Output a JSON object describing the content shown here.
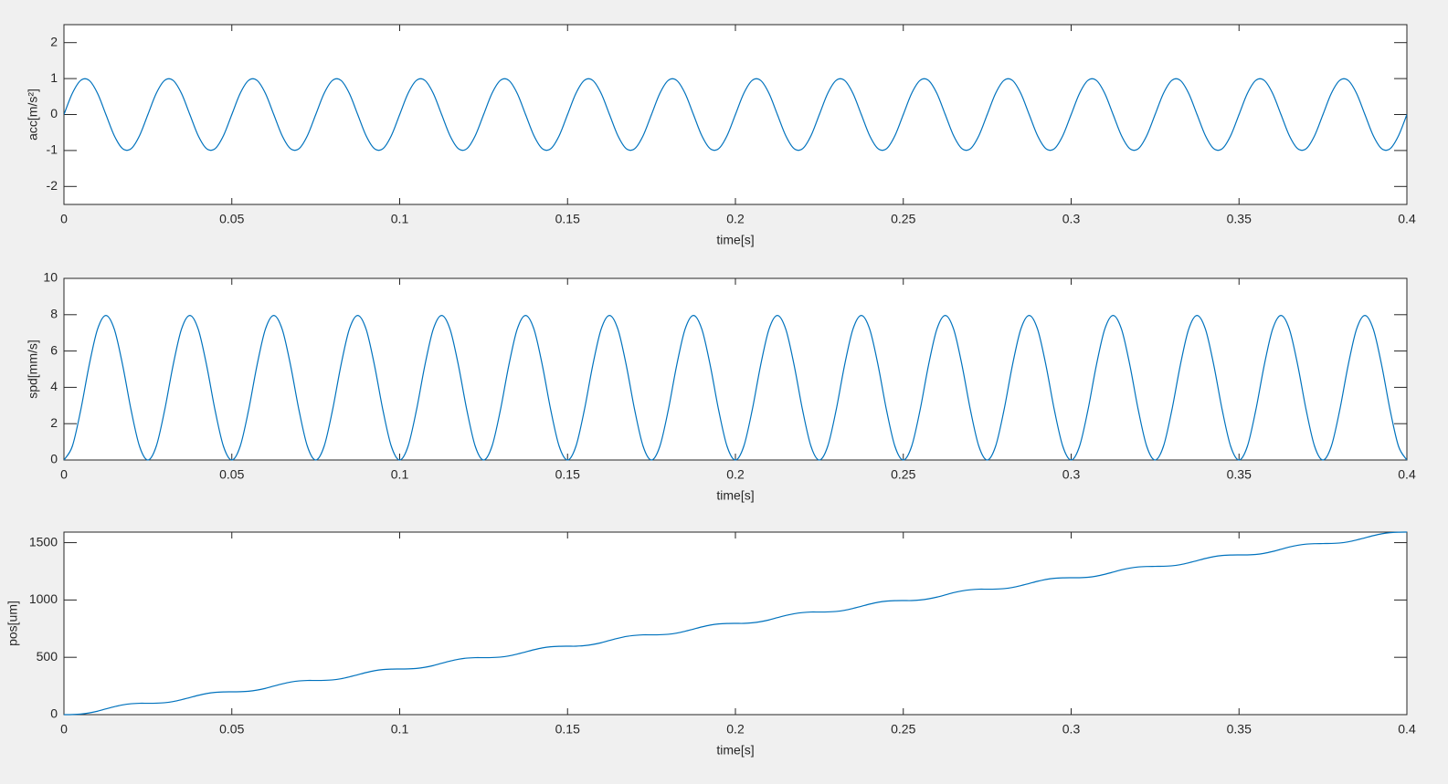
{
  "chart_data": [
    {
      "type": "line",
      "xlabel": "time[s]",
      "ylabel": "acc[m/s²]",
      "xlim": [
        0,
        0.4
      ],
      "ylim": [
        -2.5,
        2.5
      ],
      "xticks": [
        0,
        0.05,
        0.1,
        0.15,
        0.2,
        0.25,
        0.3,
        0.35,
        0.4
      ],
      "yticks": [
        -2,
        -1,
        0,
        1,
        2
      ],
      "grid": false,
      "x": [
        0,
        0.0025,
        0.005,
        0.0075,
        0.01,
        0.0125,
        0.015,
        0.0175,
        0.02,
        0.0225,
        0.025,
        0.0275,
        0.03,
        0.0325,
        0.035,
        0.0375,
        0.04,
        0.0425,
        0.045,
        0.0475,
        0.05,
        0.0525,
        0.055,
        0.0575,
        0.06,
        0.0625,
        0.065,
        0.0675,
        0.07,
        0.0725,
        0.075,
        0.0775,
        0.08,
        0.0825,
        0.085,
        0.0875,
        0.09,
        0.0925,
        0.095,
        0.0975,
        0.1,
        0.1025,
        0.105,
        0.1075,
        0.11,
        0.1125,
        0.115,
        0.1175,
        0.12,
        0.1225,
        0.125,
        0.1275,
        0.13,
        0.1325,
        0.135,
        0.1375,
        0.14,
        0.1425,
        0.145,
        0.1475,
        0.15,
        0.1525,
        0.155,
        0.1575,
        0.16,
        0.1625,
        0.165,
        0.1675,
        0.17,
        0.1725,
        0.175,
        0.1775,
        0.18,
        0.1825,
        0.185,
        0.1875,
        0.19,
        0.1925,
        0.195,
        0.1975,
        0.2,
        0.2025,
        0.205,
        0.2075,
        0.21,
        0.2125,
        0.215,
        0.2175,
        0.22,
        0.2225,
        0.225,
        0.2275,
        0.23,
        0.2325,
        0.235,
        0.2375,
        0.24,
        0.2425,
        0.245,
        0.2475,
        0.25,
        0.2525,
        0.255,
        0.2575,
        0.26,
        0.2625,
        0.265,
        0.2675,
        0.27,
        0.2725,
        0.275,
        0.2775,
        0.28,
        0.2825,
        0.285,
        0.2875,
        0.29,
        0.2925,
        0.295,
        0.2975,
        0.3,
        0.3025,
        0.305,
        0.3075,
        0.31,
        0.3125,
        0.315,
        0.3175,
        0.32,
        0.3225,
        0.325,
        0.3275,
        0.33,
        0.3325,
        0.335,
        0.3375,
        0.34,
        0.3425,
        0.345,
        0.3475,
        0.35,
        0.3525,
        0.355,
        0.3575,
        0.36,
        0.3625,
        0.365,
        0.3675,
        0.37,
        0.3725,
        0.375,
        0.3775,
        0.38,
        0.3825,
        0.385,
        0.3875,
        0.39,
        0.3925,
        0.395,
        0.3975,
        0.4
      ],
      "series": [
        {
          "color": "#0072bd",
          "values": [
            0,
            0.59,
            0.95,
            0.95,
            0.59,
            0,
            -0.59,
            -0.95,
            -0.95,
            -0.59,
            0,
            0.59,
            0.95,
            0.95,
            0.59,
            0,
            -0.59,
            -0.95,
            -0.95,
            -0.59,
            0,
            0.59,
            0.95,
            0.95,
            0.59,
            0,
            -0.59,
            -0.95,
            -0.95,
            -0.59,
            0,
            0.59,
            0.95,
            0.95,
            0.59,
            0,
            -0.59,
            -0.95,
            -0.95,
            -0.59,
            0,
            0.59,
            0.95,
            0.95,
            0.59,
            0,
            -0.59,
            -0.95,
            -0.95,
            -0.59,
            0,
            0.59,
            0.95,
            0.95,
            0.59,
            0,
            -0.59,
            -0.95,
            -0.95,
            -0.59,
            0,
            0.59,
            0.95,
            0.95,
            0.59,
            0,
            -0.59,
            -0.95,
            -0.95,
            -0.59,
            0,
            0.59,
            0.95,
            0.95,
            0.59,
            0,
            -0.59,
            -0.95,
            -0.95,
            -0.59,
            0,
            0.59,
            0.95,
            0.95,
            0.59,
            0,
            -0.59,
            -0.95,
            -0.95,
            -0.59,
            0,
            0.59,
            0.95,
            0.95,
            0.59,
            0,
            -0.59,
            -0.95,
            -0.95,
            -0.59,
            0,
            0.59,
            0.95,
            0.95,
            0.59,
            0,
            -0.59,
            -0.95,
            -0.95,
            -0.59,
            0,
            0.59,
            0.95,
            0.95,
            0.59,
            0,
            -0.59,
            -0.95,
            -0.95,
            -0.59,
            0,
            0.59,
            0.95,
            0.95,
            0.59,
            0,
            -0.59,
            -0.95,
            -0.95,
            -0.59,
            0,
            0.59,
            0.95,
            0.95,
            0.59,
            0,
            -0.59,
            -0.95,
            -0.95,
            -0.59,
            0,
            0.59,
            0.95,
            0.95,
            0.59,
            0,
            -0.59,
            -0.95,
            -0.95,
            -0.59,
            0,
            0.59,
            0.95,
            0.95,
            0.59,
            0,
            -0.59,
            -0.95,
            -0.95,
            -0.59,
            0
          ]
        }
      ]
    },
    {
      "type": "line",
      "xlabel": "time[s]",
      "ylabel": "spd[mm/s]",
      "xlim": [
        0,
        0.4
      ],
      "ylim": [
        0,
        10
      ],
      "xticks": [
        0,
        0.05,
        0.1,
        0.15,
        0.2,
        0.25,
        0.3,
        0.35,
        0.4
      ],
      "yticks": [
        0,
        2,
        4,
        6,
        8,
        10
      ],
      "grid": false,
      "x": [
        0,
        0.0025,
        0.005,
        0.0075,
        0.01,
        0.0125,
        0.015,
        0.0175,
        0.02,
        0.0225,
        0.025,
        0.0275,
        0.03,
        0.0325,
        0.035,
        0.0375,
        0.04,
        0.0425,
        0.045,
        0.0475,
        0.05,
        0.0525,
        0.055,
        0.0575,
        0.06,
        0.0625,
        0.065,
        0.0675,
        0.07,
        0.0725,
        0.075,
        0.0775,
        0.08,
        0.0825,
        0.085,
        0.0875,
        0.09,
        0.0925,
        0.095,
        0.0975,
        0.1,
        0.1025,
        0.105,
        0.1075,
        0.11,
        0.1125,
        0.115,
        0.1175,
        0.12,
        0.1225,
        0.125,
        0.1275,
        0.13,
        0.1325,
        0.135,
        0.1375,
        0.14,
        0.1425,
        0.145,
        0.1475,
        0.15,
        0.1525,
        0.155,
        0.1575,
        0.16,
        0.1625,
        0.165,
        0.1675,
        0.17,
        0.1725,
        0.175,
        0.1775,
        0.18,
        0.1825,
        0.185,
        0.1875,
        0.19,
        0.1925,
        0.195,
        0.1975,
        0.2,
        0.2025,
        0.205,
        0.2075,
        0.21,
        0.2125,
        0.215,
        0.2175,
        0.22,
        0.2225,
        0.225,
        0.2275,
        0.23,
        0.2325,
        0.235,
        0.2375,
        0.24,
        0.2425,
        0.245,
        0.2475,
        0.25,
        0.2525,
        0.255,
        0.2575,
        0.26,
        0.2625,
        0.265,
        0.2675,
        0.27,
        0.2725,
        0.275,
        0.2775,
        0.28,
        0.2825,
        0.285,
        0.2875,
        0.29,
        0.2925,
        0.295,
        0.2975,
        0.3,
        0.3025,
        0.305,
        0.3075,
        0.31,
        0.3125,
        0.315,
        0.3175,
        0.32,
        0.3225,
        0.325,
        0.3275,
        0.33,
        0.3325,
        0.335,
        0.3375,
        0.34,
        0.3425,
        0.345,
        0.3475,
        0.35,
        0.3525,
        0.355,
        0.3575,
        0.36,
        0.3625,
        0.365,
        0.3675,
        0.37,
        0.3725,
        0.375,
        0.3775,
        0.38,
        0.3825,
        0.385,
        0.3875,
        0.39,
        0.3925,
        0.395,
        0.3975,
        0.4
      ],
      "series": [
        {
          "color": "#0072bd",
          "values": [
            0,
            0.76,
            2.75,
            5.21,
            7.2,
            7.96,
            7.2,
            5.21,
            2.75,
            0.76,
            0,
            0.76,
            2.75,
            5.21,
            7.2,
            7.96,
            7.2,
            5.21,
            2.75,
            0.76,
            0,
            0.76,
            2.75,
            5.21,
            7.2,
            7.96,
            7.2,
            5.21,
            2.75,
            0.76,
            0,
            0.76,
            2.75,
            5.21,
            7.2,
            7.96,
            7.2,
            5.21,
            2.75,
            0.76,
            0,
            0.76,
            2.75,
            5.21,
            7.2,
            7.96,
            7.2,
            5.21,
            2.75,
            0.76,
            0,
            0.76,
            2.75,
            5.21,
            7.2,
            7.96,
            7.2,
            5.21,
            2.75,
            0.76,
            0,
            0.76,
            2.75,
            5.21,
            7.2,
            7.96,
            7.2,
            5.21,
            2.75,
            0.76,
            0,
            0.76,
            2.75,
            5.21,
            7.2,
            7.96,
            7.2,
            5.21,
            2.75,
            0.76,
            0,
            0.76,
            2.75,
            5.21,
            7.2,
            7.96,
            7.2,
            5.21,
            2.75,
            0.76,
            0,
            0.76,
            2.75,
            5.21,
            7.2,
            7.96,
            7.2,
            5.21,
            2.75,
            0.76,
            0,
            0.76,
            2.75,
            5.21,
            7.2,
            7.96,
            7.2,
            5.21,
            2.75,
            0.76,
            0,
            0.76,
            2.75,
            5.21,
            7.2,
            7.96,
            7.2,
            5.21,
            2.75,
            0.76,
            0,
            0.76,
            2.75,
            5.21,
            7.2,
            7.96,
            7.2,
            5.21,
            2.75,
            0.76,
            0,
            0.76,
            2.75,
            5.21,
            7.2,
            7.96,
            7.2,
            5.21,
            2.75,
            0.76,
            0,
            0.76,
            2.75,
            5.21,
            7.2,
            7.96,
            7.2,
            5.21,
            2.75,
            0.76,
            0,
            0.76,
            2.75,
            5.21,
            7.2,
            7.96,
            7.2,
            5.21,
            2.75,
            0.76,
            0
          ]
        }
      ]
    },
    {
      "type": "line",
      "xlabel": "time[s]",
      "ylabel": "pos[um]",
      "xlim": [
        0,
        0.4
      ],
      "ylim": [
        0,
        1592
      ],
      "xticks": [
        0,
        0.05,
        0.1,
        0.15,
        0.2,
        0.25,
        0.3,
        0.35,
        0.4
      ],
      "yticks": [
        0,
        500,
        1000,
        1500
      ],
      "grid": false,
      "x": [
        0,
        0.0025,
        0.005,
        0.0075,
        0.01,
        0.0125,
        0.015,
        0.0175,
        0.02,
        0.0225,
        0.025,
        0.0275,
        0.03,
        0.0325,
        0.035,
        0.0375,
        0.04,
        0.0425,
        0.045,
        0.0475,
        0.05,
        0.0525,
        0.055,
        0.0575,
        0.06,
        0.0625,
        0.065,
        0.0675,
        0.07,
        0.0725,
        0.075,
        0.0775,
        0.08,
        0.0825,
        0.085,
        0.0875,
        0.09,
        0.0925,
        0.095,
        0.0975,
        0.1,
        0.1025,
        0.105,
        0.1075,
        0.11,
        0.1125,
        0.115,
        0.1175,
        0.12,
        0.1225,
        0.125,
        0.1275,
        0.13,
        0.1325,
        0.135,
        0.1375,
        0.14,
        0.1425,
        0.145,
        0.1475,
        0.15,
        0.1525,
        0.155,
        0.1575,
        0.16,
        0.1625,
        0.165,
        0.1675,
        0.17,
        0.1725,
        0.175,
        0.1775,
        0.18,
        0.1825,
        0.185,
        0.1875,
        0.19,
        0.1925,
        0.195,
        0.1975,
        0.2,
        0.2025,
        0.205,
        0.2075,
        0.21,
        0.2125,
        0.215,
        0.2175,
        0.22,
        0.2225,
        0.225,
        0.2275,
        0.23,
        0.2325,
        0.235,
        0.2375,
        0.24,
        0.2425,
        0.245,
        0.2475,
        0.25,
        0.2525,
        0.255,
        0.2575,
        0.26,
        0.2625,
        0.265,
        0.2675,
        0.27,
        0.2725,
        0.275,
        0.2775,
        0.28,
        0.2825,
        0.285,
        0.2875,
        0.29,
        0.2925,
        0.295,
        0.2975,
        0.3,
        0.3025,
        0.305,
        0.3075,
        0.31,
        0.3125,
        0.315,
        0.3175,
        0.32,
        0.3225,
        0.325,
        0.3275,
        0.33,
        0.3325,
        0.335,
        0.3375,
        0.34,
        0.3425,
        0.345,
        0.3475,
        0.35,
        0.3525,
        0.355,
        0.3575,
        0.36,
        0.3625,
        0.365,
        0.3675,
        0.37,
        0.3725,
        0.375,
        0.3775,
        0.38,
        0.3825,
        0.385,
        0.3875,
        0.39,
        0.3925,
        0.395,
        0.3975,
        0.4
      ],
      "series": [
        {
          "color": "#0072bd",
          "values": [
            0,
            1,
            5,
            15,
            30,
            50,
            69,
            85,
            95,
            99,
            99,
            100,
            104,
            114,
            130,
            149,
            168,
            184,
            194,
            198,
            199,
            200,
            204,
            214,
            229,
            249,
            268,
            284,
            294,
            298,
            298,
            299,
            303,
            313,
            329,
            348,
            367,
            383,
            393,
            397,
            398,
            399,
            403,
            413,
            428,
            448,
            467,
            483,
            493,
            497,
            497,
            498,
            502,
            512,
            528,
            547,
            566,
            582,
            592,
            596,
            597,
            597,
            602,
            612,
            627,
            647,
            666,
            682,
            691,
            696,
            696,
            697,
            701,
            711,
            727,
            746,
            765,
            781,
            791,
            795,
            796,
            796,
            801,
            811,
            826,
            846,
            865,
            880,
            890,
            895,
            895,
            896,
            900,
            910,
            926,
            945,
            964,
            980,
            990,
            994,
            995,
            995,
            1000,
            1010,
            1025,
            1044,
            1064,
            1079,
            1089,
            1094,
            1094,
            1095,
            1099,
            1109,
            1125,
            1144,
            1163,
            1179,
            1189,
            1193,
            1194,
            1194,
            1198,
            1208,
            1224,
            1243,
            1263,
            1278,
            1288,
            1292,
            1293,
            1294,
            1298,
            1308,
            1324,
            1343,
            1362,
            1378,
            1388,
            1392,
            1393,
            1393,
            1397,
            1407,
            1423,
            1442,
            1462,
            1477,
            1487,
            1491,
            1492,
            1493,
            1497,
            1507,
            1523,
            1542,
            1561,
            1577,
            1587,
            1591,
            1592
          ]
        }
      ]
    }
  ]
}
